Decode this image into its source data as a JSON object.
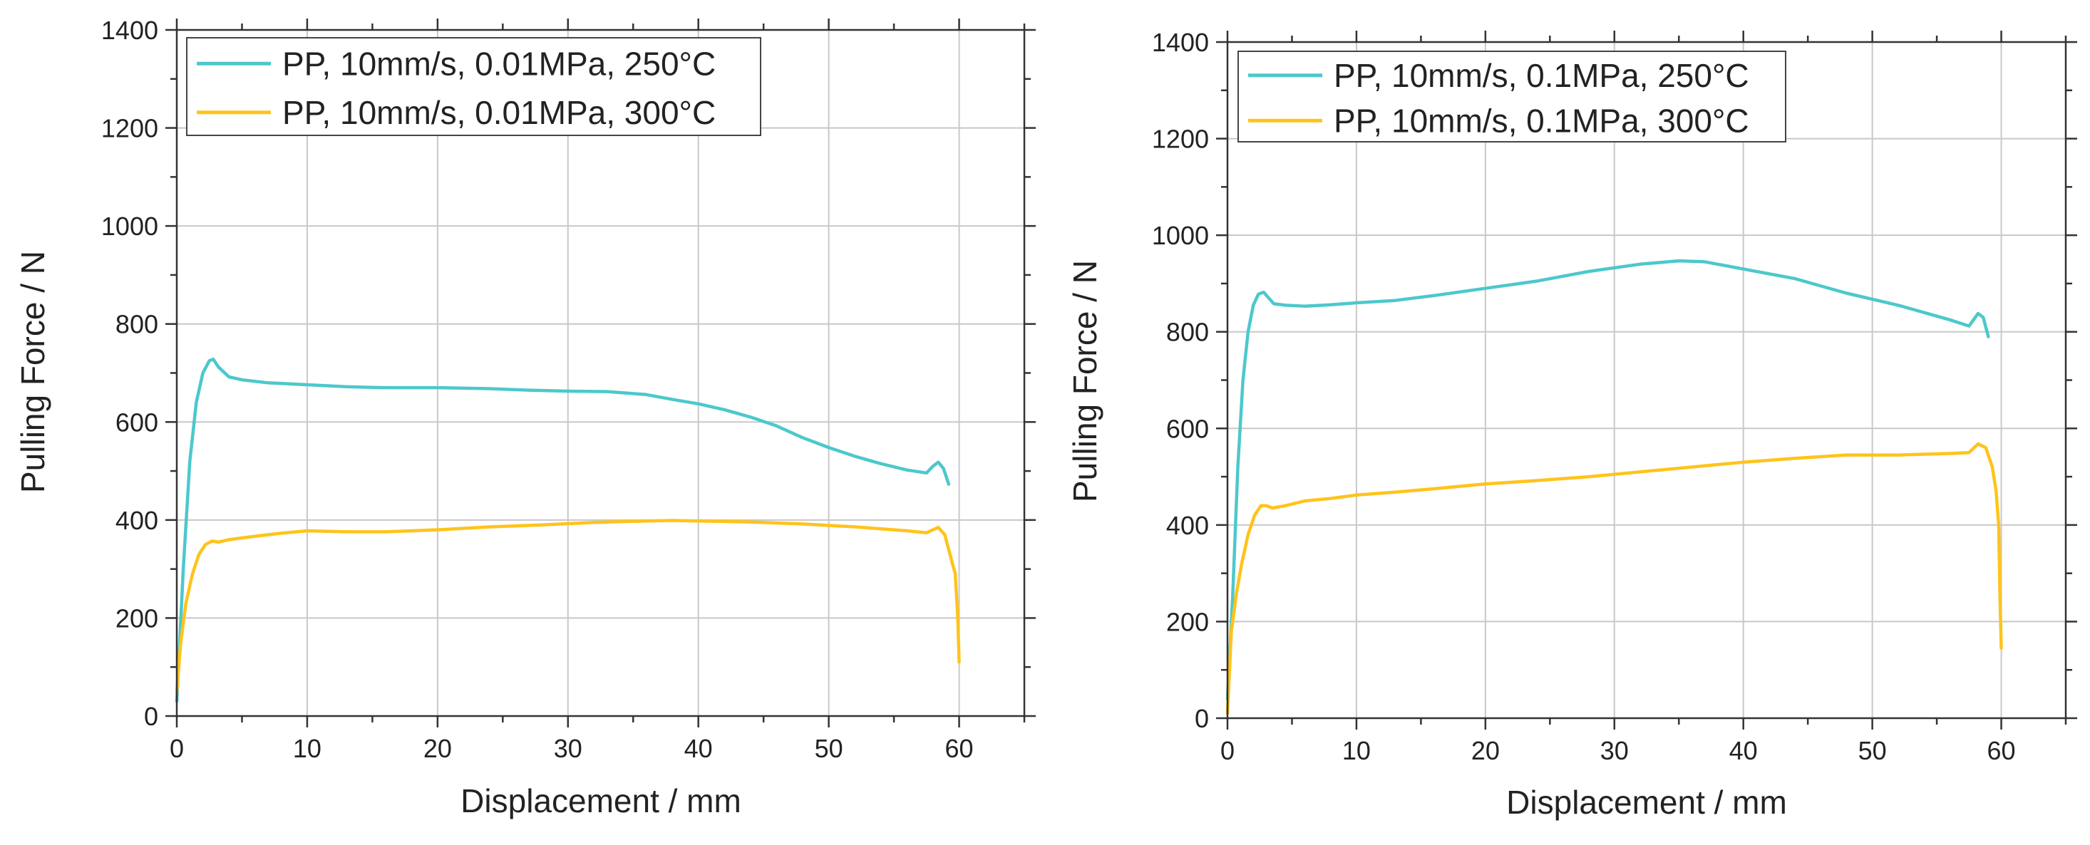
{
  "chart_data": [
    {
      "type": "line",
      "title": "",
      "xlabel": "Displacement / mm",
      "ylabel": "Pulling Force / N",
      "xlim": [
        0,
        65
      ],
      "ylim": [
        0,
        1400
      ],
      "xticks": [
        0,
        10,
        20,
        30,
        40,
        50,
        60
      ],
      "yticks": [
        0,
        200,
        400,
        600,
        800,
        1000,
        1200,
        1400
      ],
      "grid": true,
      "legend_position": "top-left",
      "series": [
        {
          "name": "PP, 10mm/s, 0.01MPa, 250°C",
          "color": "#4cc8cc",
          "x": [
            0,
            0.5,
            1,
            1.5,
            2,
            2.5,
            2.8,
            3.2,
            4,
            5,
            7,
            10,
            13,
            16,
            20,
            24,
            27,
            30,
            33,
            36,
            38,
            40,
            42,
            44,
            46,
            48,
            50,
            52,
            54,
            56,
            57.5,
            58,
            58.4,
            58.8,
            59.2
          ],
          "values": [
            30,
            300,
            520,
            640,
            700,
            725,
            728,
            712,
            692,
            686,
            680,
            676,
            672,
            670,
            670,
            668,
            665,
            663,
            662,
            656,
            646,
            637,
            625,
            610,
            592,
            568,
            548,
            530,
            515,
            502,
            496,
            510,
            518,
            505,
            473
          ]
        },
        {
          "name": "PP, 10mm/s, 0.01MPa, 300°C",
          "color": "#ffc31a",
          "x": [
            0,
            0.3,
            0.7,
            1.2,
            1.7,
            2.2,
            2.7,
            3.2,
            4,
            6,
            8,
            10,
            13,
            16,
            20,
            24,
            28,
            32,
            36,
            38,
            40,
            44,
            48,
            52,
            56,
            57.5,
            58,
            58.4,
            58.9,
            59.3,
            59.7,
            59.9,
            60
          ],
          "values": [
            50,
            150,
            230,
            290,
            330,
            350,
            357,
            355,
            360,
            367,
            373,
            378,
            376,
            376,
            380,
            386,
            390,
            395,
            398,
            399,
            398,
            396,
            392,
            386,
            378,
            374,
            380,
            385,
            370,
            330,
            290,
            200,
            110
          ]
        }
      ]
    },
    {
      "type": "line",
      "title": "",
      "xlabel": "Displacement / mm",
      "ylabel": "Pulling Force / N",
      "xlim": [
        0,
        65
      ],
      "ylim": [
        0,
        1400
      ],
      "xticks": [
        0,
        10,
        20,
        30,
        40,
        50,
        60
      ],
      "yticks": [
        0,
        200,
        400,
        600,
        800,
        1000,
        1200,
        1400
      ],
      "grid": true,
      "legend_position": "top-left",
      "series": [
        {
          "name": "PP, 10mm/s, 0.1MPa, 250°C",
          "color": "#4cc8cc",
          "x": [
            0,
            0.4,
            0.8,
            1.2,
            1.6,
            2,
            2.4,
            2.8,
            3.2,
            3.6,
            4.5,
            6,
            8,
            10,
            13,
            16,
            20,
            24,
            28,
            32,
            35,
            37,
            40,
            44,
            48,
            52,
            56,
            57.5,
            58.2,
            58.6,
            59
          ],
          "values": [
            40,
            250,
            520,
            700,
            800,
            855,
            878,
            882,
            870,
            858,
            855,
            853,
            856,
            860,
            865,
            875,
            890,
            905,
            925,
            940,
            947,
            945,
            930,
            910,
            880,
            855,
            825,
            812,
            838,
            830,
            790
          ]
        },
        {
          "name": "PP, 10mm/s, 0.1MPa, 300°C",
          "color": "#ffc31a",
          "x": [
            0,
            0.3,
            0.7,
            1.1,
            1.6,
            2.1,
            2.6,
            3,
            3.5,
            4.5,
            6,
            8,
            10,
            13,
            16,
            20,
            24,
            28,
            32,
            36,
            40,
            44,
            48,
            52,
            56,
            57.5,
            58.2,
            58.8,
            59.3,
            59.6,
            59.8,
            59.9,
            60
          ],
          "values": [
            10,
            180,
            260,
            320,
            380,
            420,
            440,
            440,
            435,
            440,
            450,
            455,
            462,
            468,
            475,
            485,
            492,
            500,
            510,
            520,
            530,
            538,
            545,
            545,
            548,
            550,
            568,
            560,
            520,
            470,
            400,
            250,
            145
          ]
        }
      ]
    }
  ]
}
